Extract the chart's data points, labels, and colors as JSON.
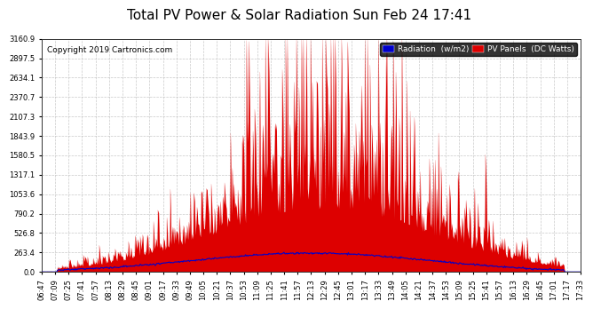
{
  "title": "Total PV Power & Solar Radiation Sun Feb 24 17:41",
  "copyright": "Copyright 2019 Cartronics.com",
  "ymax": 3160.9,
  "yticks": [
    0.0,
    263.4,
    526.8,
    790.2,
    1053.6,
    1317.1,
    1580.5,
    1843.9,
    2107.3,
    2370.7,
    2634.1,
    2897.5,
    3160.9
  ],
  "xtick_labels": [
    "06:47",
    "07:09",
    "07:25",
    "07:41",
    "07:57",
    "08:13",
    "08:29",
    "08:45",
    "09:01",
    "09:17",
    "09:33",
    "09:49",
    "10:05",
    "10:21",
    "10:37",
    "10:53",
    "11:09",
    "11:25",
    "11:41",
    "11:57",
    "12:13",
    "12:29",
    "12:45",
    "13:01",
    "13:17",
    "13:33",
    "13:49",
    "14:05",
    "14:21",
    "14:37",
    "14:53",
    "15:09",
    "15:25",
    "15:41",
    "15:57",
    "16:13",
    "16:29",
    "16:45",
    "17:01",
    "17:17",
    "17:33"
  ],
  "radiation_color": "#0000cc",
  "pv_color": "#dd0000",
  "background_color": "#ffffff",
  "grid_color": "#bbbbbb",
  "title_fontsize": 11,
  "copyright_fontsize": 6.5,
  "tick_fontsize": 6,
  "legend_fontsize": 6.5
}
